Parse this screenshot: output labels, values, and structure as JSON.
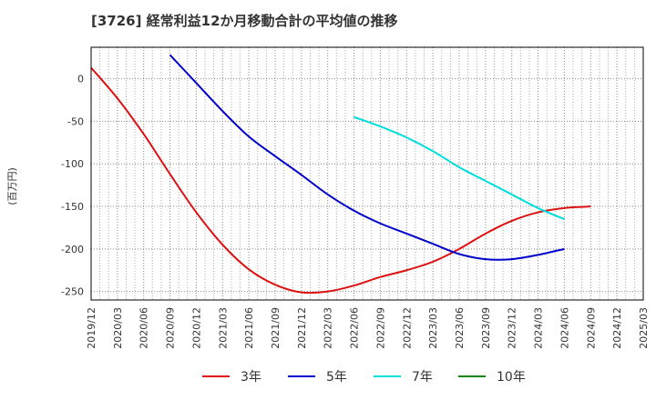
{
  "chart_data": {
    "type": "line",
    "title": "[3726]  経常利益12か月移動合計の平均値の推移",
    "ylabel": "(百万円)",
    "xlabel": "",
    "ylim": [
      -260,
      37
    ],
    "yticks": [
      0,
      -50,
      -100,
      -150,
      -200,
      -250
    ],
    "x_categories": [
      "2019/12",
      "2020/03",
      "2020/06",
      "2020/09",
      "2020/12",
      "2021/03",
      "2021/06",
      "2021/09",
      "2021/12",
      "2022/03",
      "2022/06",
      "2022/09",
      "2022/12",
      "2023/03",
      "2023/06",
      "2023/09",
      "2023/12",
      "2024/03",
      "2024/06",
      "2024/09",
      "2024/12",
      "2025/03"
    ],
    "grid": true,
    "legend_position": "bottom",
    "series": [
      {
        "name": "3年",
        "color": "#dd1111",
        "values": [
          13,
          -23,
          -65,
          -112,
          -157,
          -195,
          -224,
          -242,
          -251,
          -250,
          -243,
          -233,
          -225,
          -215,
          -200,
          -182,
          -167,
          -157,
          -152,
          -150,
          null,
          null
        ]
      },
      {
        "name": "5年",
        "color": "#0000cc",
        "values": [
          null,
          null,
          null,
          28,
          -5,
          -38,
          -68,
          -91,
          -113,
          -136,
          -155,
          -170,
          -182,
          -194,
          -206,
          -212,
          -212,
          -207,
          -200,
          null,
          null,
          null
        ]
      },
      {
        "name": "7年",
        "color": "#00dddd",
        "values": [
          null,
          null,
          null,
          null,
          null,
          null,
          null,
          null,
          null,
          null,
          -45,
          -56,
          -69,
          -85,
          -104,
          -120,
          -136,
          -152,
          -165,
          null,
          null,
          null
        ]
      },
      {
        "name": "10年",
        "color": "#118811",
        "values": [
          null,
          null,
          null,
          null,
          null,
          null,
          null,
          null,
          null,
          null,
          null,
          null,
          null,
          null,
          null,
          null,
          null,
          null,
          null,
          null,
          null,
          null
        ]
      }
    ]
  }
}
